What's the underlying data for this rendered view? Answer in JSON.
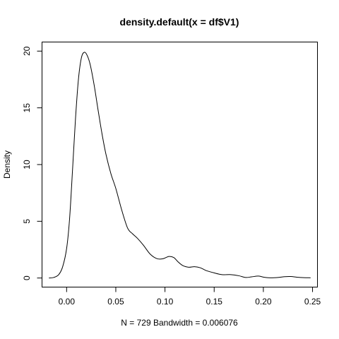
{
  "chart_data": {
    "type": "line",
    "title": "density.default(x = df$V1)",
    "xlabel": "N = 729   Bandwidth = 0.006076",
    "ylabel": "Density",
    "xlim": [
      -0.025,
      0.255
    ],
    "ylim": [
      -0.8,
      20.8
    ],
    "x_ticks": [
      0.0,
      0.05,
      0.1,
      0.15,
      0.2,
      0.25
    ],
    "x_tick_labels": [
      "0.00",
      "0.05",
      "0.10",
      "0.15",
      "0.20",
      "0.25"
    ],
    "y_ticks": [
      0,
      5,
      10,
      15,
      20
    ],
    "y_tick_labels": [
      "0",
      "5",
      "10",
      "15",
      "20"
    ],
    "series": [
      {
        "x": [
          -0.018,
          -0.013,
          -0.008,
          -0.004,
          0.0,
          0.003,
          0.006,
          0.009,
          0.012,
          0.015,
          0.018,
          0.021,
          0.024,
          0.028,
          0.032,
          0.036,
          0.04,
          0.045,
          0.05,
          0.056,
          0.062,
          0.067,
          0.072,
          0.078,
          0.085,
          0.092,
          0.098,
          0.104,
          0.109,
          0.113,
          0.118,
          0.124,
          0.13,
          0.136,
          0.142,
          0.15,
          0.158,
          0.167,
          0.175,
          0.182,
          0.188,
          0.195,
          0.201,
          0.207,
          0.215,
          0.222,
          0.228,
          0.234,
          0.241,
          0.248
        ],
        "y": [
          0.0,
          0.05,
          0.3,
          1.0,
          2.6,
          5.2,
          9.5,
          14.0,
          17.5,
          19.4,
          19.9,
          19.6,
          18.8,
          17.0,
          14.8,
          12.7,
          10.9,
          9.2,
          7.9,
          6.0,
          4.4,
          3.9,
          3.5,
          2.9,
          2.1,
          1.7,
          1.7,
          1.9,
          1.8,
          1.45,
          1.1,
          0.95,
          1.0,
          0.9,
          0.65,
          0.45,
          0.3,
          0.3,
          0.2,
          0.05,
          0.1,
          0.17,
          0.06,
          0.02,
          0.05,
          0.12,
          0.13,
          0.07,
          0.03,
          0.02
        ]
      }
    ],
    "grid": false,
    "legend": "none"
  }
}
